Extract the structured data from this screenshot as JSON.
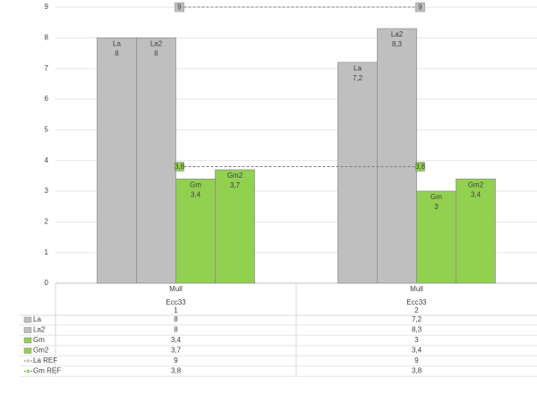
{
  "chart_data": {
    "type": "bar",
    "categories": [
      "1",
      "2"
    ],
    "category_labels_level2": [
      "Ecc33",
      "Ecc33"
    ],
    "category_labels_level1": [
      "Mull",
      "Mull"
    ],
    "ylim": [
      0,
      9
    ],
    "yticks": [
      0,
      1,
      2,
      3,
      4,
      5,
      6,
      7,
      8,
      9
    ],
    "grid": true,
    "series": [
      {
        "name": "La",
        "type": "bar",
        "color": "#bfbfbf",
        "values": [
          8,
          7.2
        ],
        "value_labels": [
          "8",
          "7,2"
        ]
      },
      {
        "name": "La2",
        "type": "bar",
        "color": "#bfbfbf",
        "values": [
          8,
          8.3
        ],
        "value_labels": [
          "8",
          "8,3"
        ]
      },
      {
        "name": "Gm",
        "type": "bar",
        "color": "#92d050",
        "values": [
          3.4,
          3
        ],
        "value_labels": [
          "3,4",
          "3"
        ]
      },
      {
        "name": "Gm2",
        "type": "bar",
        "color": "#92d050",
        "values": [
          3.7,
          3.4
        ],
        "value_labels": [
          "3,7",
          "3,4"
        ]
      },
      {
        "name": "La REF",
        "type": "line",
        "color": "#bfbfbf",
        "line_color": "#7f7f7f",
        "dashed": true,
        "values": [
          9,
          9
        ],
        "value_labels": [
          "9",
          "9"
        ]
      },
      {
        "name": "Gm REF",
        "type": "line",
        "color": "#92d050",
        "line_color": "#7f7f7f",
        "dashed": true,
        "values": [
          3.8,
          3.8
        ],
        "value_labels": [
          "3,8",
          "3,8"
        ]
      }
    ]
  }
}
